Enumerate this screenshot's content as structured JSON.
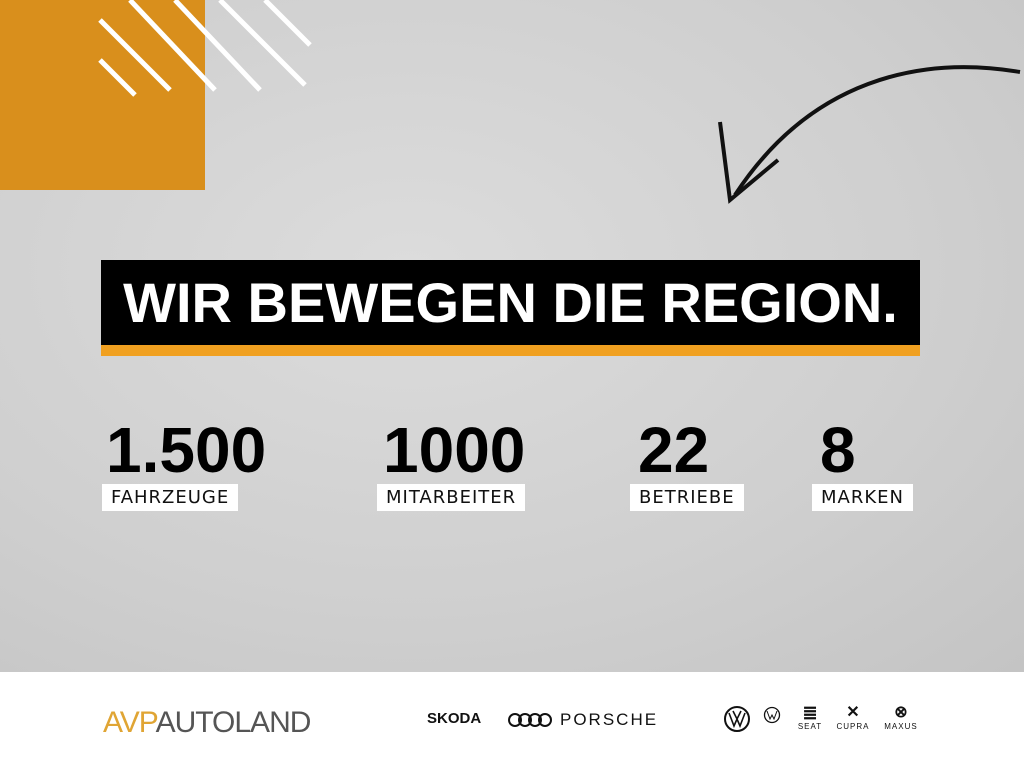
{
  "headline": "WIR BEWEGEN DIE REGION.",
  "stats": [
    {
      "value": "1.500",
      "label": "FAHRZEUGE"
    },
    {
      "value": "1000",
      "label": "MITARBEITER"
    },
    {
      "value": "22",
      "label": "BETRIEBE"
    },
    {
      "value": "8",
      "label": "MARKEN"
    }
  ],
  "logo": {
    "part1": "AVP",
    "part2": "AUTOLAND"
  },
  "brands": {
    "skoda": "SKODA",
    "porsche": "PORSCHE",
    "seat": "SEAT",
    "cupra": "CUPRA",
    "maxus": "MAXUS"
  },
  "colors": {
    "accent": "#f0a020",
    "orange_square": "#d98f1c",
    "banner": "#000000"
  }
}
